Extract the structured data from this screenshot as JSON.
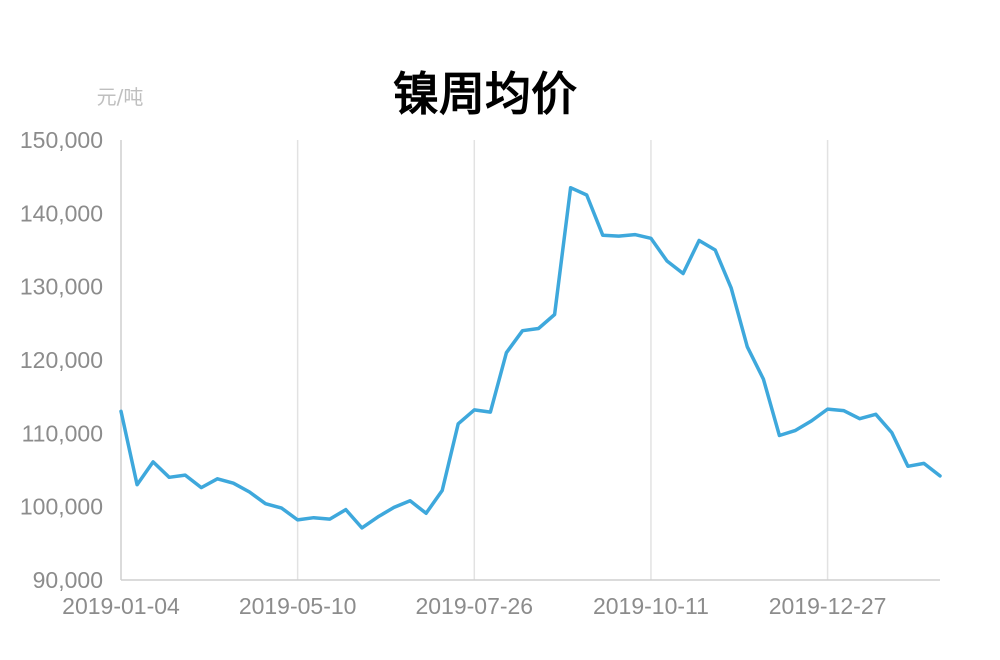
{
  "chart_data": {
    "type": "line",
    "title": "镍周均价",
    "ylabel": "元/吨",
    "xlabel": "",
    "ylim": [
      90000,
      150000
    ],
    "y_ticks": [
      "90,000",
      "100,000",
      "110,000",
      "120,000",
      "130,000",
      "140,000",
      "150,000"
    ],
    "x_ticks": [
      "2019-01-04",
      "2019-05-10",
      "2019-07-26",
      "2019-10-11",
      "2019-12-27"
    ],
    "x_tick_index": [
      0,
      11,
      22,
      33,
      44
    ],
    "grid": "vertical",
    "colors": {
      "line": "#3ea8dc",
      "grid": "#e2e2e2",
      "axis": "#cfcfcf",
      "tick": "#8c8c8c",
      "unit": "#bfbfbf"
    },
    "series": [
      {
        "values": [
          113000,
          103000,
          106100,
          104000,
          104300,
          102600,
          103800,
          103200,
          102000,
          100400,
          99800,
          98200,
          98500,
          98300,
          99600,
          97100,
          98600,
          99900,
          100800,
          99100,
          102200,
          111300,
          113200,
          112900,
          121000,
          124000,
          124300,
          126200,
          143500,
          142500,
          137000,
          136900,
          137100,
          136600,
          133500,
          131800,
          136300,
          135000,
          129800,
          121800,
          117400,
          109700,
          110400,
          111700,
          113300,
          113100,
          112000,
          112600,
          110100,
          105500,
          105900,
          104200
        ]
      }
    ]
  }
}
